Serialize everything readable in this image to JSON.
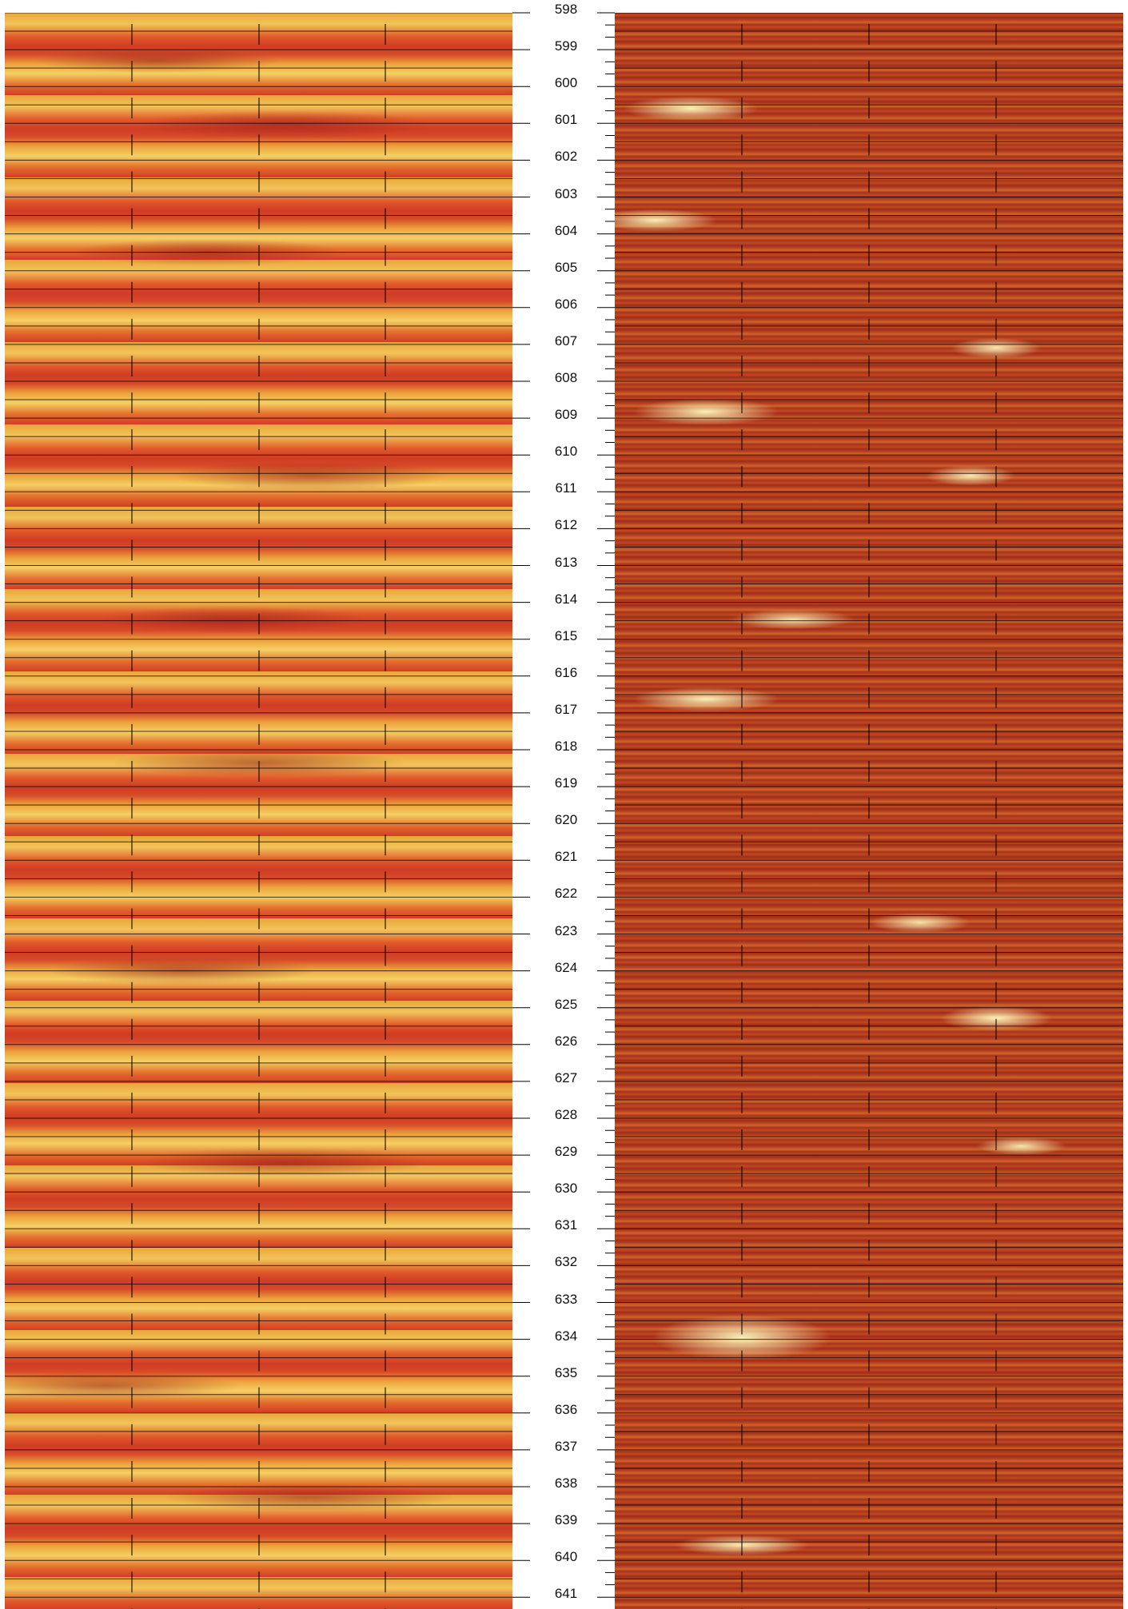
{
  "depth_labels": [
    "598",
    "599",
    "600",
    "601",
    "602",
    "603",
    "604",
    "605",
    "606",
    "607",
    "608",
    "609",
    "610",
    "611",
    "612",
    "613",
    "614",
    "615",
    "616",
    "617",
    "618",
    "619",
    "620",
    "621",
    "622",
    "623",
    "624",
    "625",
    "626",
    "627",
    "628",
    "629",
    "630",
    "631",
    "632",
    "633",
    "634",
    "635",
    "636",
    "637",
    "638",
    "639",
    "640",
    "641"
  ],
  "tracks": {
    "left": {
      "colors": [
        "#cf3c25",
        "#e8a63a",
        "#f4d064"
      ]
    },
    "right": {
      "colors": [
        "#a8341f",
        "#d0652a",
        "#fffabe"
      ]
    }
  }
}
